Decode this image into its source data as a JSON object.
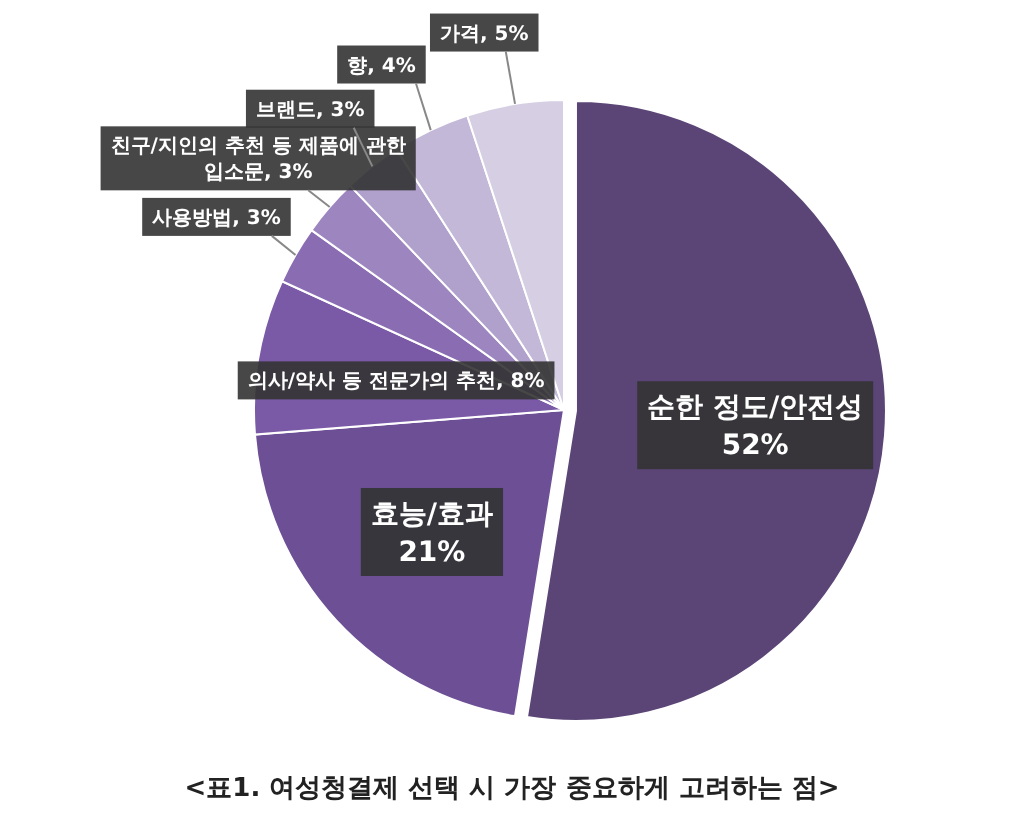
{
  "chart_data": {
    "type": "pie",
    "categories": [
      "순한 정도/안전성",
      "효능/효과",
      "의사/약사 등 전문가의 추천",
      "사용방법",
      "친구/지인의 추천 등 제품에 관한 입소문",
      "브랜드",
      "향",
      "가격"
    ],
    "values": [
      52,
      21,
      8,
      3,
      3,
      3,
      4,
      5
    ],
    "colors": [
      "#5b4577",
      "#6c4f94",
      "#7a5aa6",
      "#8a6cb3",
      "#9d86c0",
      "#b0a0cc",
      "#c3b8d8",
      "#d6cfe3"
    ],
    "value_labels": [
      "52%",
      "21%",
      ", 8%",
      ", 3%",
      ", 3%",
      ", 3%",
      ", 4%",
      ", 5%"
    ],
    "annotations": [
      "<표1. 여성청결제 선택 시 가장 중요하게 고려하는 점>"
    ]
  }
}
